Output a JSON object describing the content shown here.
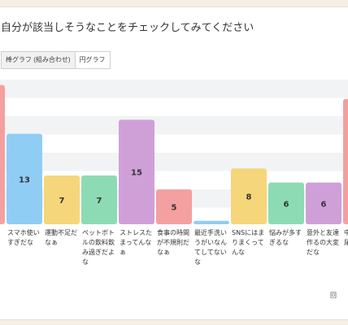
{
  "title": "自分が該当しそうなことをチェックしてみてください",
  "tabs": [
    {
      "label": "棒グラフ (組み合わせ)",
      "active": true
    },
    {
      "label": "円グラフ",
      "active": false
    }
  ],
  "corner_text": "回",
  "chart_data": {
    "type": "bar",
    "title": "",
    "xlabel": "",
    "ylabel": "",
    "ylim": [
      0,
      21
    ],
    "grid": true,
    "categories": [
      "",
      "スマホ使いすぎだな",
      "運動不足だなぁ",
      "ペットボトルの飲料飲み過ぎだよな",
      "ストレスたまってんなぁ",
      "食事の時間が不規則だなぁ",
      "最近手洗いうがいなんてしてないな",
      "SNSにはまりまくってんな",
      "悩みが多すぎるな",
      "意外と友達作るの大変だな",
      "中尿"
    ],
    "category_lines": [
      [],
      [
        "スマホ使い",
        "すぎだな"
      ],
      [
        "運動不足だ",
        "なぁ"
      ],
      [
        "ペットボト",
        "ルの飲料飲",
        "み過ぎだよ",
        "な"
      ],
      [
        "ストレスた",
        "まってんな",
        "ぁ"
      ],
      [
        "食事の時間",
        "が不規則だ",
        "なぁ"
      ],
      [
        "最近手洗い",
        "うがいなん",
        "てしてない",
        "な"
      ],
      [
        "SNSにはま",
        "りまくって",
        "んな"
      ],
      [
        "悩みが多す",
        "ぎるな"
      ],
      [
        "意外と友達",
        "作るの大変",
        "だな"
      ],
      [
        "中",
        "尿"
      ]
    ],
    "values": [
      20,
      13,
      7,
      7,
      15,
      5,
      0.5,
      8,
      6,
      6,
      18
    ],
    "labels": [
      "",
      "13",
      "7",
      "7",
      "15",
      "5",
      "",
      "8",
      "6",
      "6",
      ""
    ],
    "colors": [
      "#f4a0a0",
      "#90cdf4",
      "#f6d67a",
      "#8ddbb4",
      "#cfa0d8",
      "#f4a0a0",
      "#90cdf4",
      "#f6d67a",
      "#8ddbb4",
      "#cfa0d8",
      "#f4a0a0"
    ]
  }
}
